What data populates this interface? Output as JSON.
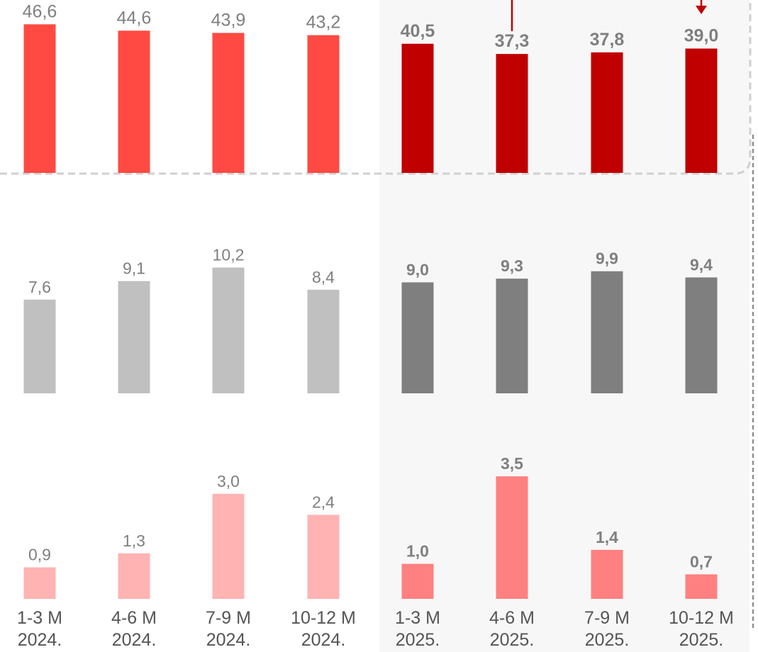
{
  "chart_data": [
    {
      "type": "bar",
      "categories": [
        [
          "1-3 M",
          "2024."
        ],
        [
          "4-6 M",
          "2024."
        ],
        [
          "7-9 M",
          "2024."
        ],
        [
          "10-12 M",
          "2024."
        ],
        [
          "1-3 M",
          "2025."
        ],
        [
          "4-6 M",
          "2025."
        ],
        [
          "7-9 M",
          "2025."
        ],
        [
          "10-12 M",
          "2025."
        ]
      ],
      "series": [
        {
          "values": [
            46.6,
            44.6,
            43.9,
            43.2,
            40.5,
            37.3,
            37.8,
            39.0
          ],
          "labels": [
            "46,6",
            "44,6",
            "43,9",
            "43,2",
            "40,5",
            "37,3",
            "37,8",
            "39,0"
          ],
          "colors": [
            "#ff4a43",
            "#c00000"
          ]
        },
        {
          "values": [
            7.6,
            9.1,
            10.2,
            8.4,
            9.0,
            9.3,
            9.9,
            9.4
          ],
          "labels": [
            "7,6",
            "9,1",
            "10,2",
            "8,4",
            "9,0",
            "9,3",
            "9,9",
            "9,4"
          ],
          "colors": [
            "#c0c0c0",
            "#7f7f7f"
          ]
        },
        {
          "values": [
            0.9,
            1.3,
            3.0,
            2.4,
            1.0,
            3.5,
            1.4,
            0.7
          ],
          "labels": [
            "0,9",
            "1,3",
            "3,0",
            "2,4",
            "1,0",
            "3,5",
            "1,4",
            "0,7"
          ],
          "colors": [
            "#ffb3b3",
            "#ff8080"
          ]
        }
      ],
      "highlight_from_index": 4,
      "label_colors": {
        "normal": "#7f7f7f",
        "highlight_top": "#7f7f7f",
        "highlight_mid": "#7f7f7f",
        "highlight_low": "#7f7f7f"
      },
      "annotation_color": "#c00000",
      "highlight_band_color": "#f7f7f7",
      "grid": false,
      "legend": "none"
    }
  ]
}
